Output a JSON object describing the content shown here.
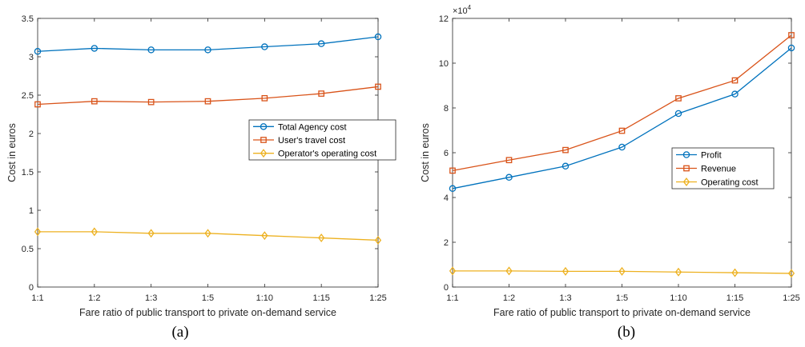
{
  "chart_data": [
    {
      "type": "line",
      "panel_label": "(a)",
      "categories": [
        "1:1",
        "1:2",
        "1:3",
        "1:5",
        "1:10",
        "1:15",
        "1:25"
      ],
      "xlabel": "Fare ratio of public transport to private on-demand service",
      "ylabel": "Cost in euros",
      "ylim": [
        0,
        3.5
      ],
      "yticks": [
        0,
        0.5,
        1,
        1.5,
        2,
        2.5,
        3,
        3.5
      ],
      "ytick_labels": [
        "0",
        "0.5",
        "1",
        "1.5",
        "2",
        "2.5",
        "3",
        "3.5"
      ],
      "grid": false,
      "legend_position": "center-right",
      "series": [
        {
          "name": "Total Agency cost",
          "color": "#0072BD",
          "marker": "circle",
          "values": [
            3.07,
            3.11,
            3.09,
            3.09,
            3.13,
            3.17,
            3.26
          ]
        },
        {
          "name": "User's travel cost",
          "color": "#D95319",
          "marker": "square",
          "values": [
            2.38,
            2.42,
            2.41,
            2.42,
            2.46,
            2.52,
            2.61
          ]
        },
        {
          "name": "Operator's operating cost",
          "color": "#EDB120",
          "marker": "diamond",
          "values": [
            0.72,
            0.72,
            0.7,
            0.7,
            0.67,
            0.64,
            0.61
          ]
        }
      ]
    },
    {
      "type": "line",
      "panel_label": "(b)",
      "categories": [
        "1:1",
        "1:2",
        "1:3",
        "1:5",
        "1:10",
        "1:15",
        "1:25"
      ],
      "xlabel": "Fare ratio of public transport to private on-demand service",
      "ylabel": "Cost in euros",
      "y_exponent_label": "×10",
      "y_exponent_power": "4",
      "ylim": [
        0,
        12
      ],
      "yticks": [
        0,
        2,
        4,
        6,
        8,
        10,
        12
      ],
      "ytick_labels": [
        "0",
        "2",
        "4",
        "6",
        "8",
        "10",
        "12"
      ],
      "grid": false,
      "legend_position": "center-right",
      "series": [
        {
          "name": "Profit",
          "color": "#0072BD",
          "marker": "circle",
          "values": [
            4.4,
            4.9,
            5.4,
            6.25,
            7.75,
            8.62,
            10.68
          ]
        },
        {
          "name": "Revenue",
          "color": "#D95319",
          "marker": "square",
          "values": [
            5.2,
            5.67,
            6.12,
            6.98,
            8.43,
            9.23,
            11.25
          ]
        },
        {
          "name": "Operating cost",
          "color": "#EDB120",
          "marker": "diamond",
          "values": [
            0.72,
            0.72,
            0.7,
            0.7,
            0.67,
            0.64,
            0.61
          ]
        }
      ]
    }
  ]
}
